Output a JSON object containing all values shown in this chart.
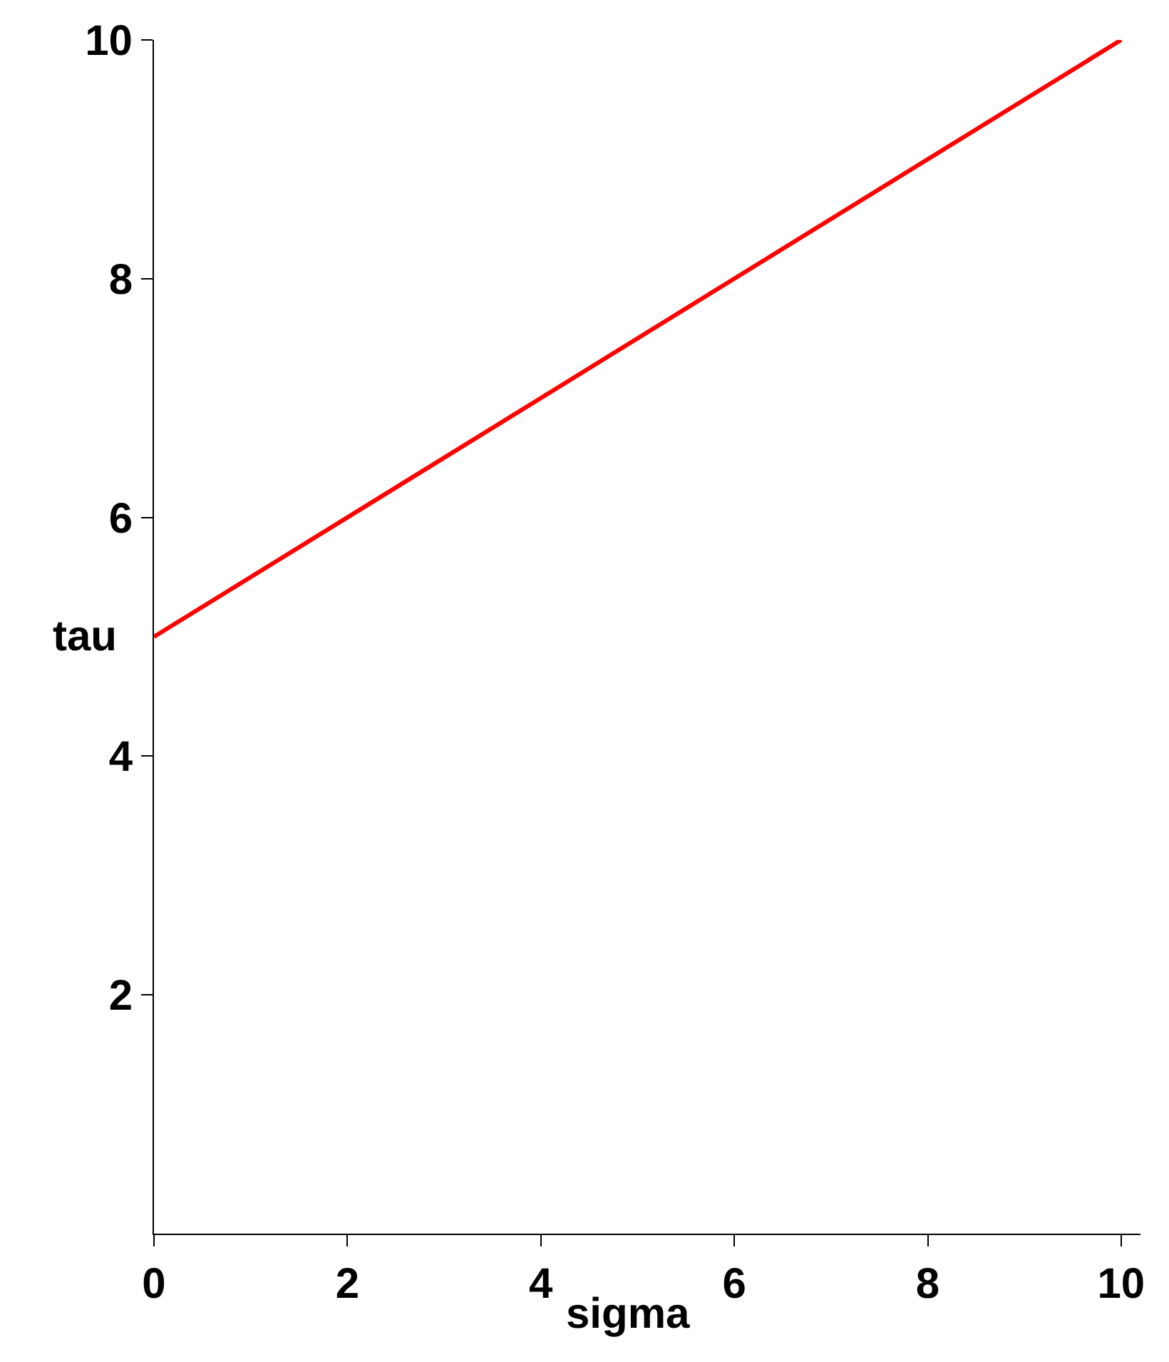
{
  "chart_data": {
    "type": "line",
    "xlabel": "sigma",
    "ylabel": "tau",
    "x": [
      0,
      10
    ],
    "series": [
      {
        "color": "#ff0000",
        "values": [
          5,
          10
        ]
      }
    ],
    "xlim": [
      0,
      10.2
    ],
    "ylim": [
      0,
      10
    ],
    "xticks": [
      0,
      2,
      4,
      6,
      8,
      10
    ],
    "yticks": [
      2,
      4,
      6,
      8,
      10
    ],
    "grid": false,
    "marker": "none",
    "line_style": "solid"
  }
}
